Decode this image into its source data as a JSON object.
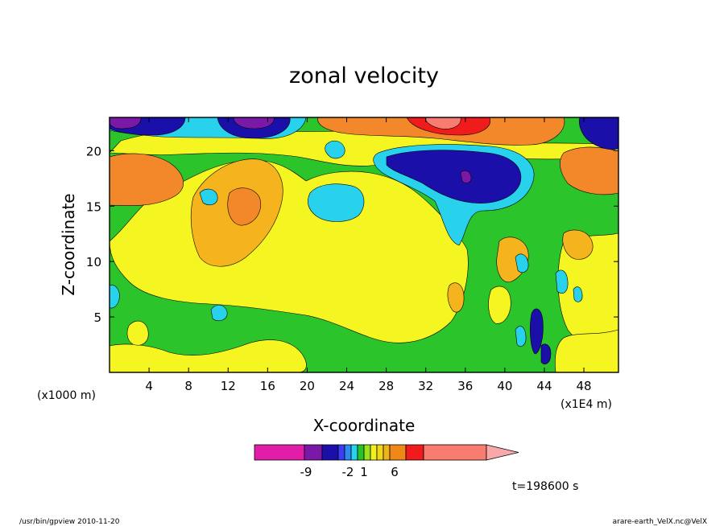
{
  "chart_data": {
    "type": "heatmap",
    "title": "zonal velocity",
    "xlabel": "X-coordinate",
    "ylabel": "Z-coordinate",
    "x_unit_left": "(x1000 m)",
    "x_unit_right": "(x1E4 m)",
    "xlim": [
      0,
      51.5
    ],
    "ylim": [
      0,
      23
    ],
    "xticks": [
      4,
      8,
      12,
      16,
      20,
      24,
      28,
      32,
      36,
      40,
      44,
      48
    ],
    "yticks": [
      5,
      10,
      15,
      20
    ],
    "time_label": "t=198600 s",
    "colorbar": {
      "tick_labels": [
        "-9",
        "-2",
        "1",
        "6"
      ],
      "colors": [
        "#e21ea9",
        "#7a19a8",
        "#1a0fa8",
        "#3c3cf5",
        "#2a8cf0",
        "#28d2ec",
        "#26c428",
        "#9ae21a",
        "#f0f020",
        "#f0d818",
        "#f0b418",
        "#f08818",
        "#f01c1c",
        "#f87c70",
        "#f8a8a8"
      ]
    },
    "regions": [
      {
        "name": "green",
        "color": "#2bc52b"
      },
      {
        "name": "yellow",
        "color": "#f5f522"
      },
      {
        "name": "light-yellow",
        "color": "#f5dc22"
      },
      {
        "name": "orange-yellow",
        "color": "#f5b41e"
      },
      {
        "name": "orange",
        "color": "#f2882a"
      },
      {
        "name": "red",
        "color": "#f01c1c"
      },
      {
        "name": "pink",
        "color": "#f87c70"
      },
      {
        "name": "cyan",
        "color": "#28d2ec"
      },
      {
        "name": "blue",
        "color": "#1a0fa8"
      },
      {
        "name": "purple",
        "color": "#7a19a8"
      }
    ]
  },
  "footer": {
    "left": "/usr/bin/gpview  2010-11-20",
    "right": "arare-earth_VelX.nc@VelX"
  }
}
